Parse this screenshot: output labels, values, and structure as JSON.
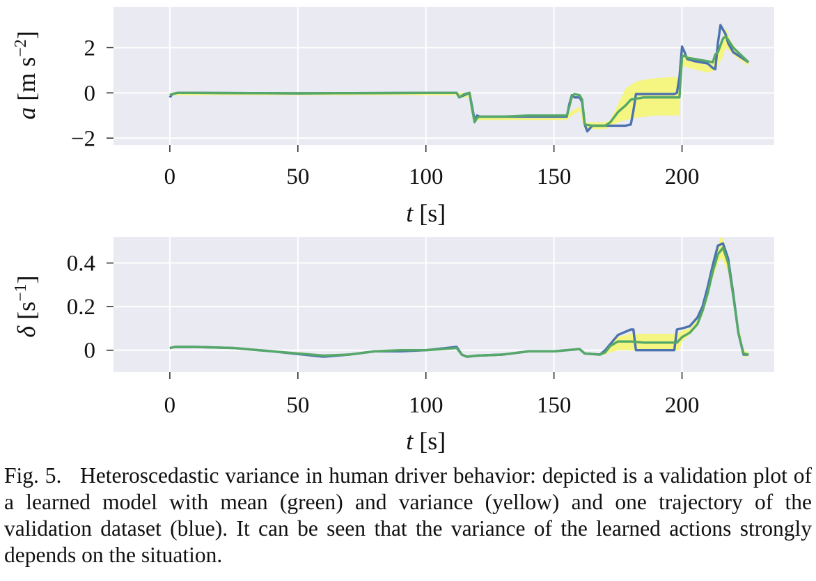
{
  "chart_data": [
    {
      "type": "line",
      "title": "",
      "xlabel": "t [s]",
      "ylabel": "a [m s^-2]",
      "xlim": [
        -22,
        236
      ],
      "ylim": [
        -2.3,
        3.8
      ],
      "xticks": [
        0,
        50,
        100,
        150,
        200
      ],
      "xtick_labels": [
        "0",
        "50",
        "100",
        "150",
        "200"
      ],
      "yticks": [
        -2,
        0,
        2
      ],
      "ytick_labels": [
        "−2",
        "0",
        "2"
      ],
      "grid": true,
      "legend": "none",
      "colors": {
        "background": "#eaeaf2",
        "grid": "#ffffff",
        "mean": "#55a868",
        "variance": "#f5f57a",
        "trajectory": "#4c72b0"
      },
      "series": [
        {
          "role": "variance band (yellow)",
          "x": [
            0,
            112,
            113,
            117,
            119,
            122,
            155,
            157,
            160,
            162,
            165,
            170,
            172,
            175,
            178,
            182,
            186,
            190,
            195,
            199,
            200,
            203,
            206,
            210,
            213,
            214,
            216,
            217,
            219,
            222,
            226
          ],
          "upper": [
            0.0,
            0.0,
            0.0,
            0.0,
            -1.0,
            -1.0,
            -1.0,
            -0.8,
            -0.6,
            -1.3,
            -1.3,
            -1.3,
            -1.2,
            -0.5,
            0.2,
            0.5,
            0.6,
            0.65,
            0.7,
            0.7,
            1.8,
            1.6,
            1.4,
            1.2,
            1.6,
            1.7,
            2.4,
            2.9,
            2.3,
            1.8,
            1.4
          ],
          "lower": [
            -0.1,
            -0.1,
            -0.2,
            -0.2,
            -1.2,
            -1.2,
            -1.2,
            -1.0,
            -0.8,
            -1.6,
            -1.6,
            -1.6,
            -1.5,
            -1.3,
            -1.2,
            -1.1,
            -1.05,
            -1.0,
            -1.0,
            -1.0,
            1.2,
            1.1,
            1.0,
            0.9,
            1.0,
            1.2,
            1.6,
            2.0,
            1.8,
            1.5,
            1.2
          ]
        },
        {
          "role": "trajectory (blue)",
          "x": [
            0,
            1,
            3,
            10,
            50,
            100,
            112,
            113,
            115,
            117,
            118,
            119,
            120,
            121,
            130,
            140,
            150,
            155,
            156,
            157,
            158,
            160,
            161,
            162,
            163,
            165,
            170,
            175,
            178,
            180,
            181,
            182,
            190,
            195,
            197,
            198,
            199,
            200,
            201,
            202,
            205,
            210,
            212,
            213,
            214,
            215,
            216,
            217,
            218,
            220,
            226
          ],
          "y": [
            -0.2,
            -0.05,
            0.0,
            0.0,
            -0.02,
            0.0,
            0.0,
            -0.2,
            -0.1,
            0.0,
            -0.6,
            -1.2,
            -1.0,
            -1.05,
            -1.05,
            -1.05,
            -1.05,
            -1.05,
            -0.5,
            -0.1,
            -0.2,
            -0.2,
            -0.4,
            -1.4,
            -1.7,
            -1.45,
            -1.45,
            -1.45,
            -1.45,
            -1.4,
            -0.8,
            -0.05,
            -0.05,
            -0.05,
            -0.05,
            0.0,
            0.7,
            2.05,
            1.8,
            1.5,
            1.4,
            1.3,
            1.1,
            1.05,
            2.2,
            3.0,
            2.8,
            2.6,
            2.2,
            1.8,
            1.35
          ]
        },
        {
          "role": "mean (green)",
          "x": [
            0,
            1,
            3,
            10,
            50,
            100,
            112,
            113,
            115,
            117,
            118,
            119,
            120,
            121,
            130,
            140,
            150,
            155,
            156,
            157,
            158,
            160,
            161,
            162,
            165,
            170,
            172,
            175,
            178,
            180,
            185,
            190,
            195,
            199,
            200,
            201,
            202,
            205,
            210,
            212,
            213,
            214,
            216,
            217,
            218,
            220,
            226
          ],
          "y": [
            -0.1,
            -0.05,
            0.0,
            0.0,
            -0.02,
            0.0,
            0.0,
            -0.2,
            -0.05,
            0.0,
            -0.7,
            -1.3,
            -1.1,
            -1.05,
            -1.05,
            -1.0,
            -1.0,
            -1.0,
            -0.6,
            -0.15,
            -0.05,
            -0.1,
            -0.3,
            -1.4,
            -1.45,
            -1.45,
            -1.3,
            -0.85,
            -0.55,
            -0.3,
            -0.2,
            -0.2,
            -0.2,
            -0.2,
            1.6,
            1.65,
            1.55,
            1.5,
            1.4,
            1.35,
            1.7,
            1.8,
            2.4,
            2.5,
            2.35,
            2.0,
            1.35
          ]
        }
      ]
    },
    {
      "type": "line",
      "title": "",
      "xlabel": "t [s]",
      "ylabel": "δ [s^-1]",
      "xlim": [
        -22,
        236
      ],
      "ylim": [
        -0.1,
        0.52
      ],
      "xticks": [
        0,
        50,
        100,
        150,
        200
      ],
      "xtick_labels": [
        "0",
        "50",
        "100",
        "150",
        "200"
      ],
      "yticks": [
        0,
        0.2,
        0.4
      ],
      "ytick_labels": [
        "0",
        "0.2",
        "0.4"
      ],
      "grid": true,
      "legend": "none",
      "colors": {
        "background": "#eaeaf2",
        "grid": "#ffffff",
        "mean": "#55a868",
        "variance": "#f5f57a",
        "trajectory": "#4c72b0"
      },
      "series": [
        {
          "role": "variance band (yellow)",
          "x": [
            168,
            170,
            172,
            175,
            180,
            185,
            190,
            195,
            198,
            199,
            200,
            203,
            206,
            208,
            210,
            212,
            214,
            215,
            216,
            218,
            220,
            222,
            224,
            226
          ],
          "upper": [
            -0.02,
            0.0,
            0.03,
            0.06,
            0.075,
            0.075,
            0.075,
            0.075,
            0.075,
            0.08,
            0.09,
            0.1,
            0.14,
            0.2,
            0.28,
            0.38,
            0.48,
            0.52,
            0.51,
            0.44,
            0.3,
            0.12,
            0.0,
            -0.01
          ],
          "lower": [
            -0.02,
            -0.02,
            -0.01,
            0.0,
            0.0,
            0.0,
            0.0,
            0.0,
            0.0,
            0.0,
            0.04,
            0.07,
            0.11,
            0.16,
            0.24,
            0.33,
            0.4,
            0.42,
            0.41,
            0.36,
            0.22,
            0.06,
            -0.03,
            -0.03
          ]
        },
        {
          "role": "trajectory (blue)",
          "x": [
            0,
            2,
            10,
            25,
            40,
            60,
            70,
            80,
            90,
            100,
            112,
            114,
            116,
            120,
            130,
            140,
            150,
            160,
            162,
            168,
            170,
            175,
            180,
            181,
            182,
            197,
            198,
            200,
            203,
            206,
            208,
            210,
            212,
            214,
            216,
            218,
            220,
            222,
            224,
            226
          ],
          "y": [
            0.01,
            0.015,
            0.015,
            0.01,
            -0.005,
            -0.03,
            -0.02,
            -0.005,
            -0.005,
            0.0,
            0.015,
            -0.02,
            -0.03,
            -0.025,
            -0.02,
            -0.005,
            -0.005,
            0.005,
            -0.015,
            -0.02,
            0.0,
            0.07,
            0.095,
            0.095,
            0.0,
            0.0,
            0.095,
            0.1,
            0.11,
            0.15,
            0.2,
            0.29,
            0.39,
            0.48,
            0.49,
            0.42,
            0.26,
            0.08,
            -0.02,
            -0.02
          ]
        },
        {
          "role": "mean (green)",
          "x": [
            0,
            2,
            10,
            25,
            40,
            60,
            70,
            80,
            90,
            100,
            112,
            114,
            116,
            120,
            130,
            140,
            150,
            160,
            162,
            168,
            170,
            172,
            175,
            180,
            185,
            190,
            198,
            200,
            203,
            206,
            208,
            210,
            212,
            214,
            216,
            218,
            220,
            222,
            224,
            226
          ],
          "y": [
            0.01,
            0.015,
            0.015,
            0.01,
            -0.005,
            -0.025,
            -0.02,
            -0.005,
            0.0,
            0.0,
            0.01,
            -0.02,
            -0.03,
            -0.025,
            -0.02,
            -0.005,
            -0.005,
            0.005,
            -0.015,
            -0.02,
            -0.01,
            0.02,
            0.04,
            0.04,
            0.035,
            0.035,
            0.035,
            0.06,
            0.08,
            0.12,
            0.18,
            0.26,
            0.36,
            0.44,
            0.47,
            0.4,
            0.25,
            0.08,
            -0.015,
            -0.02
          ]
        }
      ]
    }
  ],
  "caption": {
    "label": "Fig. 5.",
    "text": "Heteroscedastic variance in human driver behavior: depicted is a validation plot of a learned model with mean (green) and variance (yellow) and one trajectory of the validation dataset (blue). It can be seen that the variance of the learned actions strongly depends on the situation."
  }
}
